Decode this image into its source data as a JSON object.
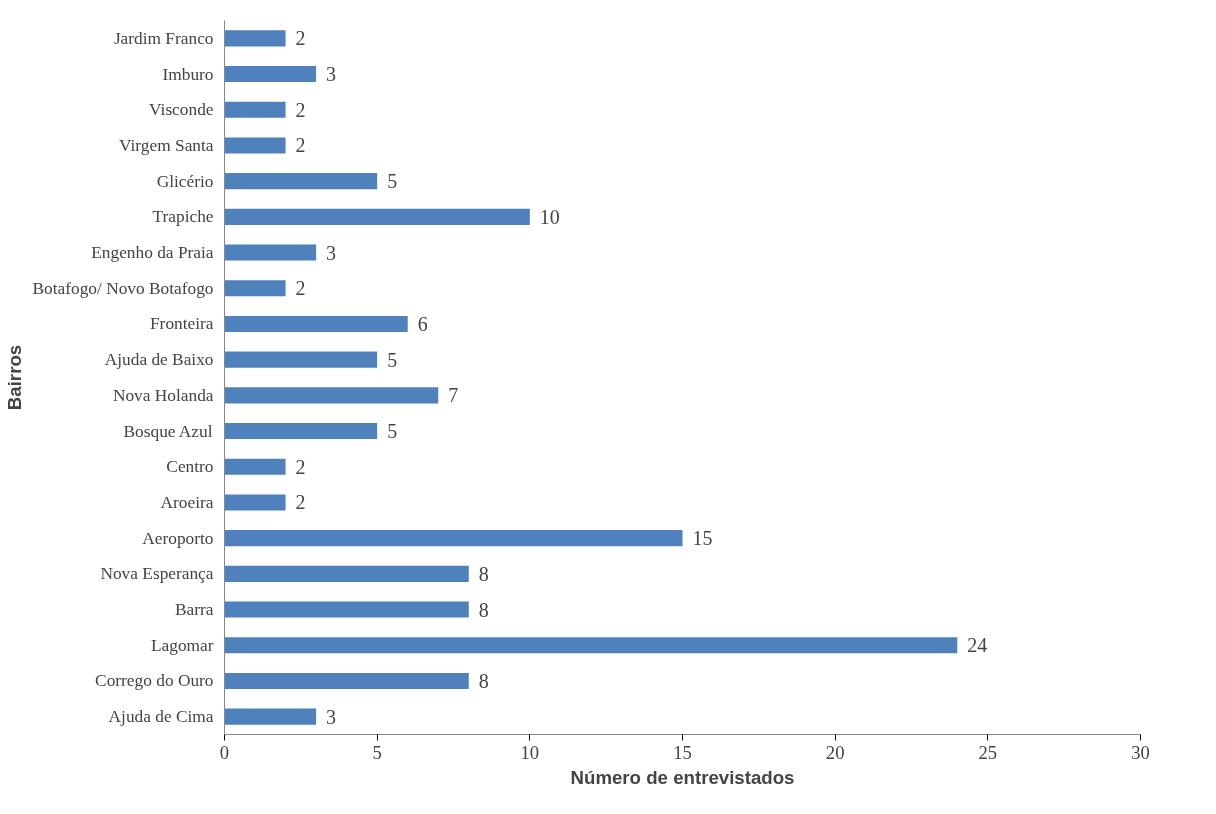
{
  "chart_data": {
    "type": "bar",
    "orientation": "horizontal",
    "xlabel": "Número de entrevistados",
    "ylabel": "Bairros",
    "categories": [
      "Jardim Franco",
      "Imburo",
      "Visconde",
      "Virgem Santa",
      "Glicério",
      "Trapiche",
      "Engenho da Praia",
      "Botafogo/ Novo Botafogo",
      "Fronteira",
      "Ajuda de Baixo",
      "Nova Holanda",
      "Bosque Azul",
      "Centro",
      "Aroeira",
      "Aeroporto",
      "Nova Esperança",
      "Barra",
      "Lagomar",
      "Corrego do Ouro",
      "Ajuda de Cima"
    ],
    "values": [
      2,
      3,
      2,
      2,
      5,
      10,
      3,
      2,
      6,
      5,
      7,
      5,
      2,
      2,
      15,
      8,
      8,
      24,
      8,
      3
    ],
    "color": "#4f81bd",
    "xlim": [
      0,
      30
    ],
    "xticks": [
      0,
      5,
      10,
      15,
      20,
      25,
      30
    ],
    "data_labels": true,
    "grid": false
  }
}
